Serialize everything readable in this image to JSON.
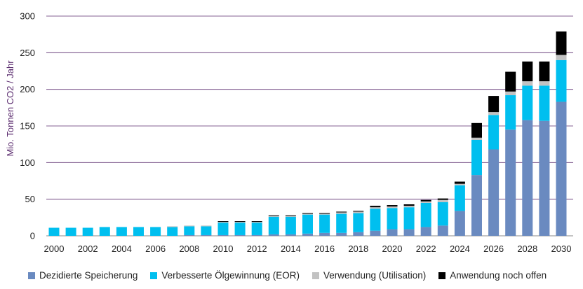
{
  "chart_data": {
    "type": "bar",
    "stacked": true,
    "title": "",
    "xlabel": "",
    "ylabel": "Mio. Tonnen CO2 / Jahr",
    "ylim": [
      0,
      300
    ],
    "yticks": [
      0,
      50,
      100,
      150,
      200,
      250,
      300
    ],
    "grid": true,
    "legend_position": "bottom",
    "categories": [
      "2000",
      "2001",
      "2002",
      "2003",
      "2004",
      "2005",
      "2006",
      "2007",
      "2008",
      "2009",
      "2010",
      "2011",
      "2012",
      "2013",
      "2014",
      "2015",
      "2016",
      "2017",
      "2018",
      "2019",
      "2020",
      "2021",
      "2022",
      "2023",
      "2024",
      "2025",
      "2026",
      "2027",
      "2028",
      "2029",
      "2030"
    ],
    "xtick_labels": [
      "2000",
      "2002",
      "2004",
      "2006",
      "2008",
      "2010",
      "2012",
      "2014",
      "2016",
      "2018",
      "2020",
      "2022",
      "2024",
      "2026",
      "2028",
      "2030"
    ],
    "series": [
      {
        "name": "Dezidierte Speicherung",
        "color": "#6a8ac0",
        "values": [
          0,
          0,
          0,
          0,
          0,
          0,
          0,
          0,
          1,
          1,
          1,
          1,
          1,
          2,
          2,
          3,
          4,
          4,
          5,
          7,
          9,
          9,
          12,
          14,
          34,
          83,
          118,
          145,
          158,
          157,
          183
        ]
      },
      {
        "name": "Verbesserte Ölgewinnung (EOR)",
        "color": "#00bfef",
        "values": [
          11,
          11,
          11,
          12,
          12,
          12,
          12,
          12,
          12,
          12,
          17,
          17,
          17,
          24,
          24,
          26,
          25,
          26,
          26,
          30,
          29,
          30,
          33,
          32,
          35,
          48,
          47,
          47,
          47,
          48,
          57
        ]
      },
      {
        "name": "Verwendung (Utilisation)",
        "color": "#c2c2c2",
        "values": [
          0,
          0,
          0,
          0,
          0,
          0,
          0,
          1,
          1,
          1,
          1,
          1,
          1,
          1,
          1,
          1,
          1,
          2,
          2,
          2,
          2,
          2,
          2,
          3,
          2,
          3,
          4,
          5,
          6,
          6,
          7
        ]
      },
      {
        "name": "Anwendung noch offen",
        "color": "#000000",
        "values": [
          0,
          0,
          0,
          0,
          0,
          0,
          0,
          0,
          0,
          0,
          1,
          1,
          1,
          1,
          1,
          1,
          1,
          1,
          1,
          2,
          2,
          2,
          2,
          2,
          3,
          20,
          22,
          27,
          27,
          27,
          32
        ]
      }
    ]
  }
}
